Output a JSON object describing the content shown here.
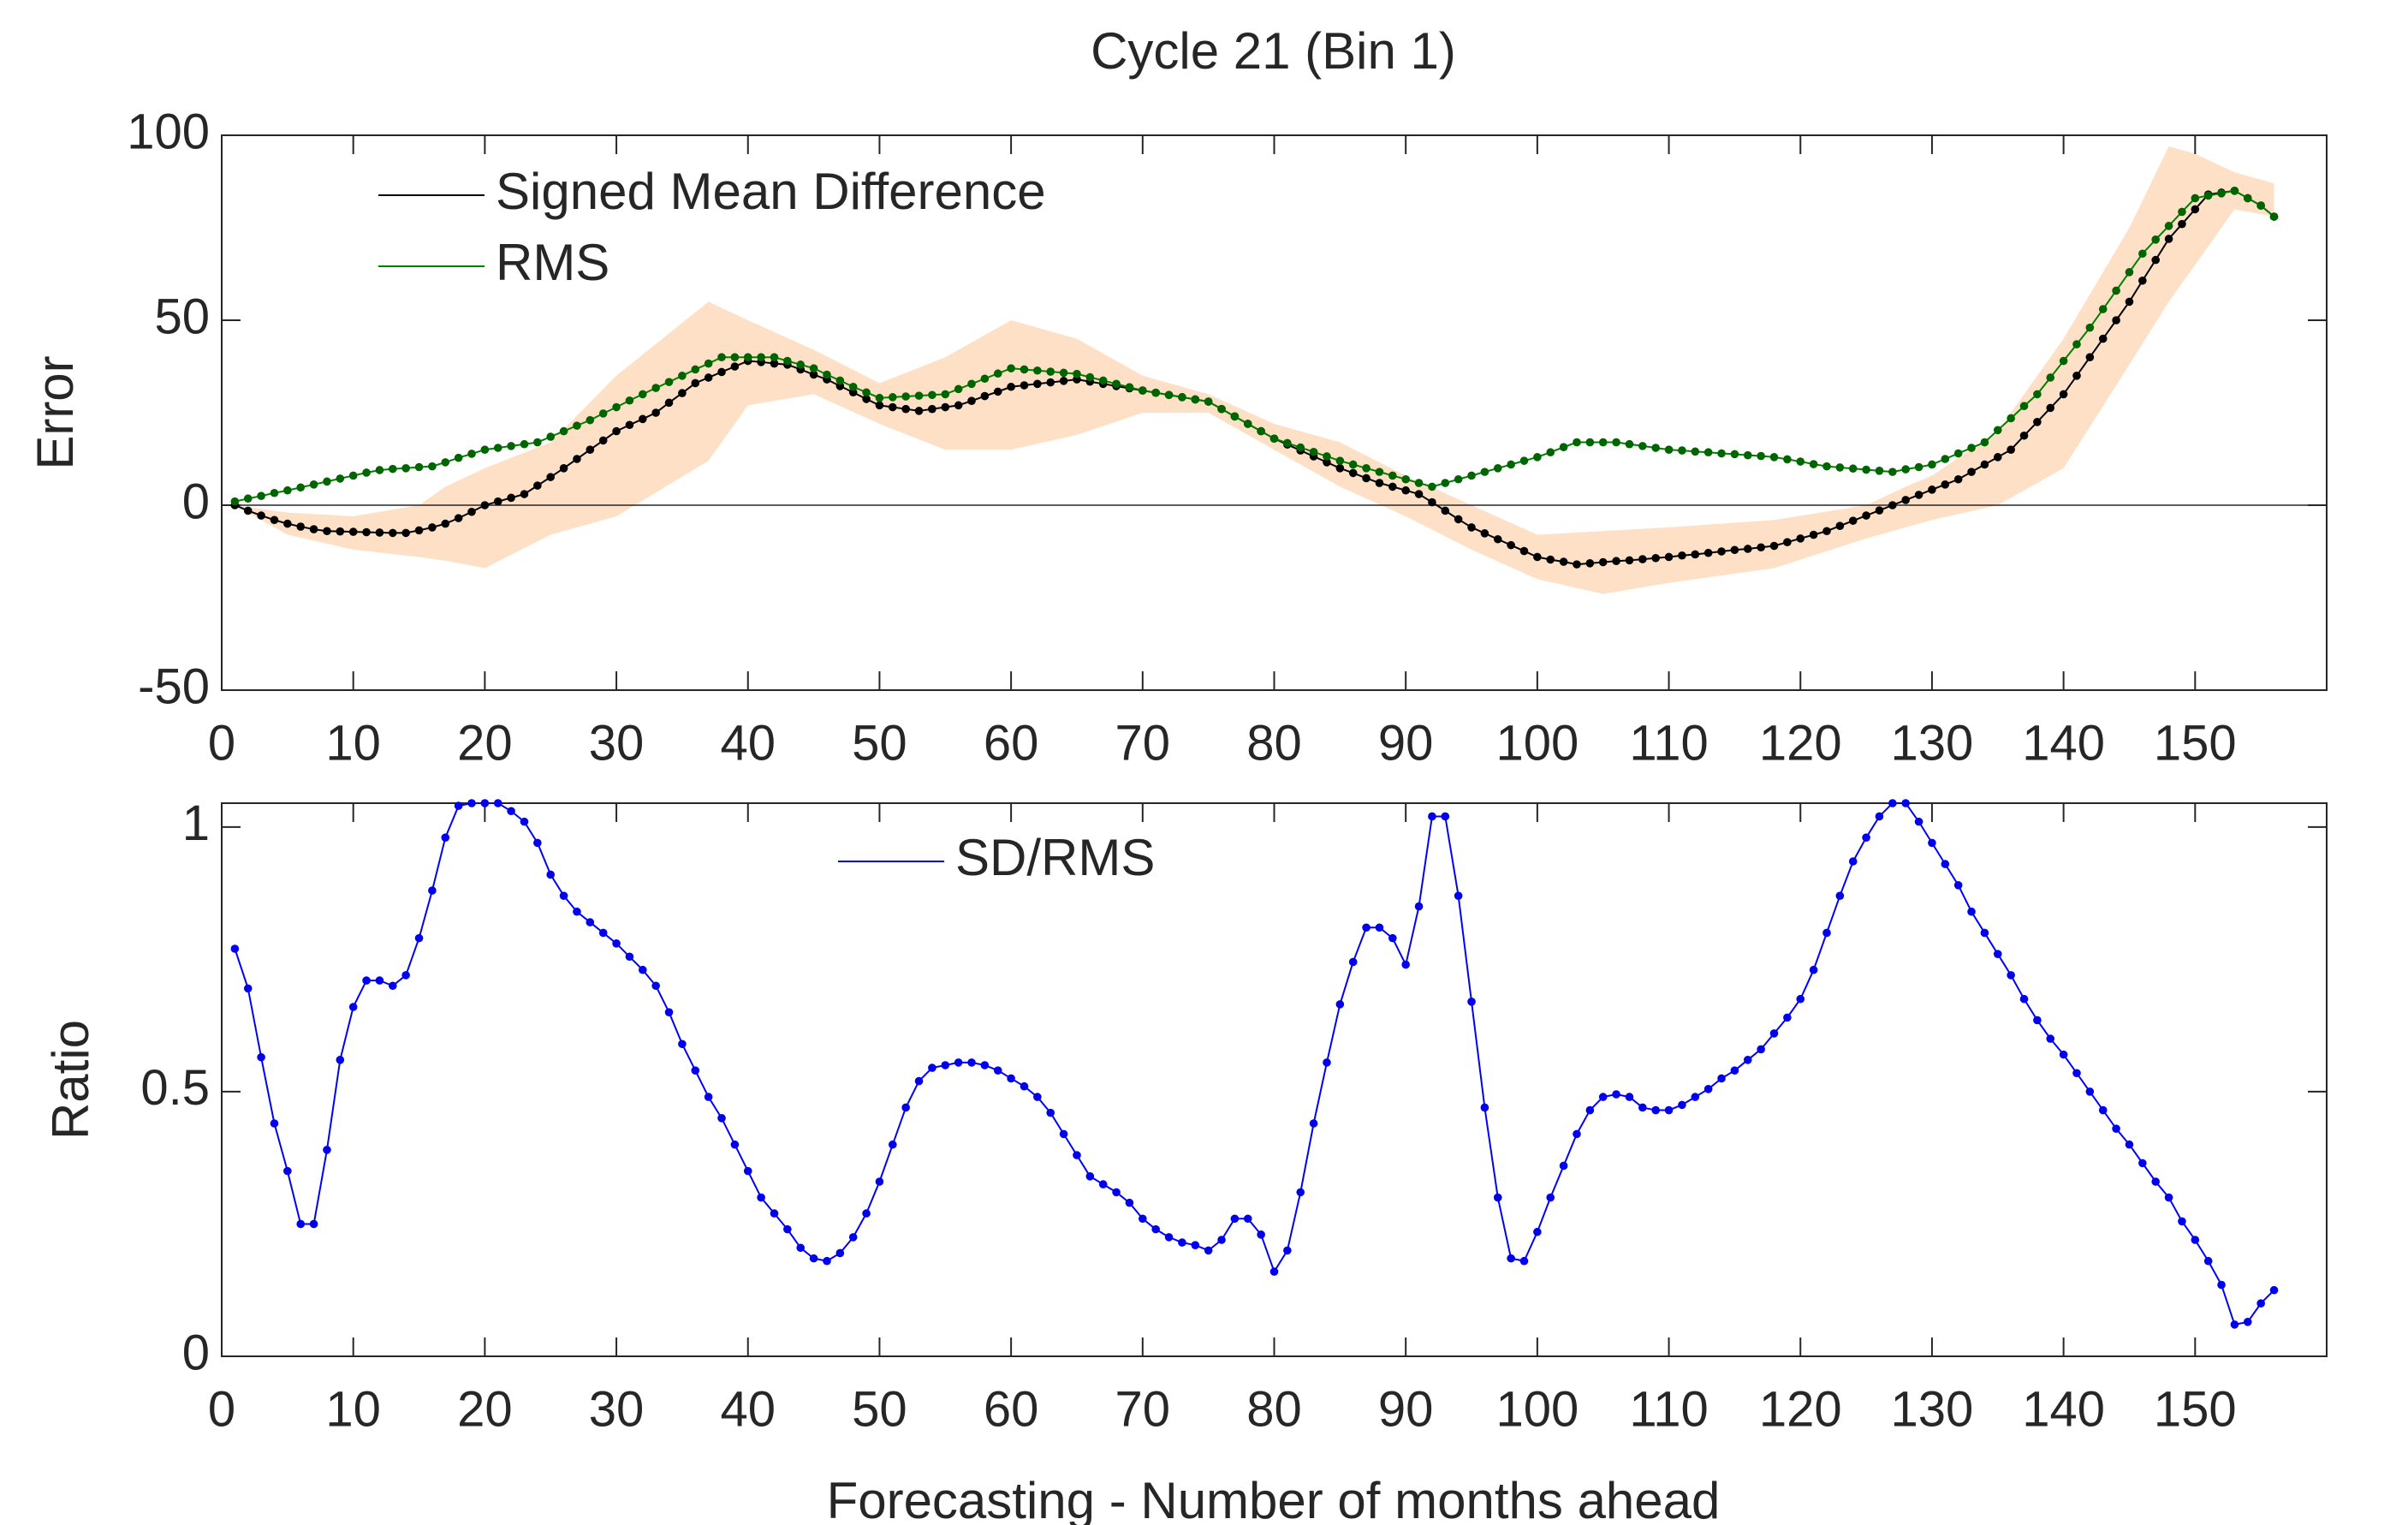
{
  "chart_data": [
    {
      "type": "line",
      "title": "Cycle 21 (Bin 1)",
      "ylabel": "Error",
      "xlim": [
        0,
        160
      ],
      "ylim": [
        -50,
        100
      ],
      "xticks": [
        0,
        10,
        20,
        30,
        40,
        50,
        60,
        70,
        80,
        90,
        100,
        110,
        120,
        130,
        140,
        150
      ],
      "yticks": [
        -50,
        0,
        50,
        100
      ],
      "zero_line": true,
      "legend": "northwest",
      "x": [
        1,
        2,
        3,
        4,
        5,
        6,
        7,
        8,
        9,
        10,
        11,
        12,
        13,
        14,
        15,
        16,
        17,
        18,
        19,
        20,
        21,
        22,
        23,
        24,
        25,
        26,
        27,
        28,
        29,
        30,
        31,
        32,
        33,
        34,
        35,
        36,
        37,
        38,
        39,
        40,
        41,
        42,
        43,
        44,
        45,
        46,
        47,
        48,
        49,
        50,
        51,
        52,
        53,
        54,
        55,
        56,
        57,
        58,
        59,
        60,
        61,
        62,
        63,
        64,
        65,
        66,
        67,
        68,
        69,
        70,
        71,
        72,
        73,
        74,
        75,
        76,
        77,
        78,
        79,
        80,
        81,
        82,
        83,
        84,
        85,
        86,
        87,
        88,
        89,
        90,
        91,
        92,
        93,
        94,
        95,
        96,
        97,
        98,
        99,
        100,
        101,
        102,
        103,
        104,
        105,
        106,
        107,
        108,
        109,
        110,
        111,
        112,
        113,
        114,
        115,
        116,
        117,
        118,
        119,
        120,
        121,
        122,
        123,
        124,
        125,
        126,
        127,
        128,
        129,
        130,
        131,
        132,
        133,
        134,
        135,
        136,
        137,
        138,
        139,
        140,
        141,
        142,
        143,
        144,
        145,
        146,
        147,
        148,
        149,
        150,
        151,
        152,
        153,
        154,
        155,
        156
      ],
      "band": {
        "color": "#fde0c6",
        "x": [
          1,
          5,
          10,
          15,
          17,
          20,
          25,
          30,
          37,
          40,
          45,
          50,
          55,
          60,
          65,
          70,
          75,
          80,
          85,
          90,
          95,
          100,
          105,
          110,
          118,
          125,
          128,
          130,
          135,
          140,
          145,
          148,
          150,
          153,
          156
        ],
        "upper": [
          0,
          -2,
          -3,
          0,
          5,
          10,
          17,
          35,
          55,
          50,
          42,
          33,
          40,
          50,
          45,
          35,
          30,
          22,
          17,
          8,
          0,
          -8,
          -7,
          -6,
          -4,
          0,
          5,
          8,
          20,
          45,
          75,
          97,
          95,
          90,
          87
        ],
        "lower": [
          0,
          -8,
          -12,
          -14,
          -15,
          -17,
          -8,
          -3,
          12,
          27,
          30,
          22,
          15,
          15,
          19,
          25,
          25,
          15,
          5,
          -3,
          -12,
          -20,
          -24,
          -21,
          -17,
          -9,
          -6,
          -4,
          0,
          10,
          38,
          55,
          65,
          80,
          78
        ]
      },
      "series": [
        {
          "name": "Signed Mean Difference",
          "color": "#000000",
          "marker_color": "#000000",
          "values": [
            0,
            -1.5,
            -2.8,
            -4,
            -5,
            -5.8,
            -6.5,
            -7,
            -7.1,
            -7.2,
            -7.3,
            -7.4,
            -7.5,
            -7.5,
            -6.8,
            -6,
            -5,
            -3.5,
            -1.8,
            0,
            1,
            2,
            3,
            5.3,
            7.6,
            10,
            12.5,
            15,
            17.5,
            20,
            21.7,
            23.3,
            25,
            27.7,
            30.3,
            33,
            34.5,
            36,
            37.5,
            39,
            38.7,
            38.3,
            38,
            36.7,
            35.3,
            34,
            32.2,
            30.5,
            28.7,
            27,
            26.5,
            26,
            25.5,
            26,
            26.5,
            27,
            28.2,
            29.5,
            30.7,
            32,
            32.4,
            32.8,
            33.2,
            33.6,
            34,
            33.4,
            32.8,
            32.2,
            31.6,
            31,
            30.4,
            29.8,
            29.2,
            28.6,
            28,
            26,
            24,
            22,
            20,
            18,
            16.4,
            14.8,
            13.2,
            11.6,
            10,
            8.7,
            7.3,
            6,
            5,
            4,
            3,
            0.8,
            -1.5,
            -3.8,
            -6,
            -7.6,
            -9.2,
            -10.8,
            -12.4,
            -14,
            -14.7,
            -15.3,
            -16,
            -15.7,
            -15.4,
            -15.1,
            -14.9,
            -14.6,
            -14.3,
            -14,
            -13.6,
            -13.3,
            -12.9,
            -12.5,
            -12.1,
            -11.8,
            -11.4,
            -11,
            -10,
            -9,
            -8,
            -7,
            -5.6,
            -4.2,
            -2.8,
            -1.4,
            0,
            1.4,
            2.8,
            4.2,
            5.6,
            7,
            9,
            11,
            13,
            15,
            18.8,
            22.5,
            26.3,
            30,
            35,
            40,
            45,
            50,
            55,
            60.7,
            66.3,
            72,
            76,
            80,
            84,
            84.5,
            85,
            83,
            81,
            78
          ]
        },
        {
          "name": "RMS",
          "color": "#008000",
          "marker_color": "#006400",
          "values": [
            1,
            1.8,
            2.5,
            3.3,
            4,
            4.8,
            5.6,
            6.4,
            7.2,
            8,
            8.8,
            9.5,
            9.8,
            10,
            10.3,
            10.5,
            11.6,
            12.8,
            13.9,
            15,
            15.5,
            16,
            16.5,
            17,
            18.5,
            20,
            21.5,
            23,
            24.8,
            26.5,
            28.3,
            30,
            31.7,
            33.3,
            35,
            36.7,
            38.3,
            40,
            40,
            40,
            40,
            40,
            39,
            38,
            37,
            35.3,
            33.7,
            32,
            30.5,
            29,
            29.2,
            29.4,
            29.6,
            29.8,
            30,
            31.4,
            32.8,
            34.2,
            35.6,
            37,
            36.7,
            36.4,
            36.1,
            35.8,
            35.5,
            34.6,
            33.7,
            32.8,
            31.9,
            31,
            30.4,
            29.8,
            29.2,
            28.6,
            28,
            26,
            24,
            22,
            20,
            18,
            16.8,
            15.6,
            14.4,
            13.2,
            12,
            11,
            10,
            9,
            8,
            7,
            6,
            5,
            6,
            7,
            8,
            9,
            10,
            11,
            12,
            13,
            14.3,
            15.7,
            17,
            17,
            17,
            17,
            16.5,
            16,
            15.5,
            15,
            14.8,
            14.5,
            14.3,
            14,
            13.8,
            13.5,
            13.3,
            13,
            12.4,
            11.8,
            11.1,
            10.5,
            10.2,
            9.9,
            9.6,
            9.3,
            9,
            9.7,
            10.3,
            11,
            12.5,
            14,
            15.5,
            17,
            20.3,
            23.5,
            26.8,
            30,
            34.5,
            39,
            43.5,
            48,
            53,
            58,
            63,
            68,
            71.8,
            75.5,
            79.3,
            83,
            83.7,
            84.3,
            85,
            83,
            81,
            78
          ]
        }
      ]
    },
    {
      "type": "line",
      "ylabel": "Ratio",
      "xlabel": "Forecasting - Number of months ahead",
      "xlim": [
        0,
        160
      ],
      "ylim": [
        0,
        1.045
      ],
      "xticks": [
        0,
        10,
        20,
        30,
        40,
        50,
        60,
        70,
        80,
        90,
        100,
        110,
        120,
        130,
        140,
        150
      ],
      "yticks": [
        0,
        0.5,
        1
      ],
      "legend": "north",
      "x": [
        1,
        2,
        3,
        4,
        5,
        6,
        7,
        8,
        9,
        10,
        11,
        12,
        13,
        14,
        15,
        16,
        17,
        18,
        19,
        20,
        21,
        22,
        23,
        24,
        25,
        26,
        27,
        28,
        29,
        30,
        31,
        32,
        33,
        34,
        35,
        36,
        37,
        38,
        39,
        40,
        41,
        42,
        43,
        44,
        45,
        46,
        47,
        48,
        49,
        50,
        51,
        52,
        53,
        54,
        55,
        56,
        57,
        58,
        59,
        60,
        61,
        62,
        63,
        64,
        65,
        66,
        67,
        68,
        69,
        70,
        71,
        72,
        73,
        74,
        75,
        76,
        77,
        78,
        79,
        80,
        81,
        82,
        83,
        84,
        85,
        86,
        87,
        88,
        89,
        90,
        91,
        92,
        93,
        94,
        95,
        96,
        97,
        98,
        99,
        100,
        101,
        102,
        103,
        104,
        105,
        106,
        107,
        108,
        109,
        110,
        111,
        112,
        113,
        114,
        115,
        116,
        117,
        118,
        119,
        120,
        121,
        122,
        123,
        124,
        125,
        126,
        127,
        128,
        129,
        130,
        131,
        132,
        133,
        134,
        135,
        136,
        137,
        138,
        139,
        140,
        141,
        142,
        143,
        144,
        145,
        146,
        147,
        148,
        149,
        150,
        151,
        152,
        153,
        154,
        155,
        156
      ],
      "series": [
        {
          "name": "SD/RMS",
          "color": "#0000ff",
          "marker_color": "#0000ee",
          "values": [
            0.77,
            0.695,
            0.565,
            0.44,
            0.35,
            0.25,
            0.25,
            0.39,
            0.56,
            0.66,
            0.71,
            0.71,
            0.7,
            0.72,
            0.79,
            0.88,
            0.98,
            1.04,
            1.045,
            1.045,
            1.045,
            1.03,
            1.01,
            0.97,
            0.91,
            0.87,
            0.84,
            0.82,
            0.8,
            0.78,
            0.755,
            0.73,
            0.7,
            0.65,
            0.59,
            0.54,
            0.49,
            0.45,
            0.4,
            0.35,
            0.3,
            0.27,
            0.24,
            0.205,
            0.185,
            0.18,
            0.195,
            0.225,
            0.27,
            0.33,
            0.4,
            0.47,
            0.52,
            0.545,
            0.55,
            0.555,
            0.555,
            0.55,
            0.54,
            0.525,
            0.51,
            0.49,
            0.46,
            0.42,
            0.38,
            0.34,
            0.325,
            0.31,
            0.29,
            0.26,
            0.24,
            0.225,
            0.215,
            0.21,
            0.2,
            0.22,
            0.26,
            0.26,
            0.23,
            0.16,
            0.2,
            0.31,
            0.44,
            0.555,
            0.665,
            0.745,
            0.81,
            0.81,
            0.79,
            0.74,
            0.85,
            1.02,
            1.02,
            0.87,
            0.67,
            0.47,
            0.3,
            0.185,
            0.18,
            0.235,
            0.3,
            0.36,
            0.42,
            0.465,
            0.49,
            0.495,
            0.49,
            0.47,
            0.465,
            0.465,
            0.475,
            0.49,
            0.505,
            0.525,
            0.54,
            0.56,
            0.58,
            0.61,
            0.64,
            0.675,
            0.73,
            0.8,
            0.87,
            0.935,
            0.98,
            1.02,
            1.045,
            1.045,
            1.01,
            0.97,
            0.93,
            0.89,
            0.84,
            0.8,
            0.76,
            0.72,
            0.675,
            0.635,
            0.6,
            0.57,
            0.535,
            0.5,
            0.465,
            0.43,
            0.4,
            0.365,
            0.33,
            0.3,
            0.255,
            0.22,
            0.18,
            0.135,
            0.06,
            0.065,
            0.1,
            0.125
          ]
        }
      ]
    }
  ]
}
